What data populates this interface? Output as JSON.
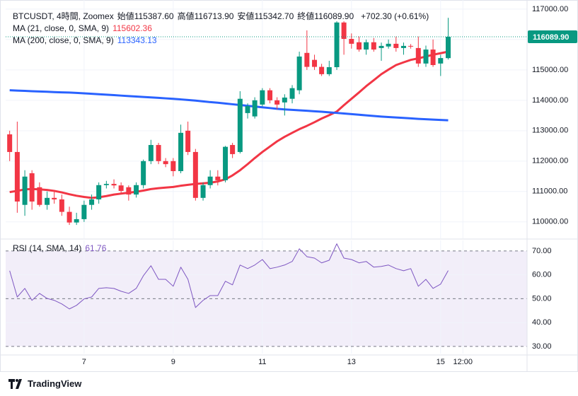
{
  "chart_data": {
    "type": "candlestick",
    "title": "BTCUSDT, 4時間, Zoomex",
    "ohlc_legend": [
      {
        "label": "始値",
        "value": "115387.60"
      },
      {
        "label": "高値",
        "value": "116713.90"
      },
      {
        "label": "安値",
        "value": "115342.70"
      },
      {
        "label": "終値",
        "value": "116089.90"
      }
    ],
    "change_label": "+702.30 (+0.61%)",
    "up_color": "#089981",
    "down_color": "#f23645",
    "x": [
      5.33,
      5.5,
      5.67,
      5.83,
      6,
      6.17,
      6.33,
      6.5,
      6.67,
      6.83,
      7,
      7.17,
      7.33,
      7.5,
      7.67,
      7.83,
      8,
      8.17,
      8.33,
      8.5,
      8.67,
      8.83,
      9,
      9.17,
      9.33,
      9.5,
      9.67,
      9.83,
      10,
      10.17,
      10.33,
      10.5,
      10.67,
      10.83,
      11,
      11.17,
      11.33,
      11.5,
      11.67,
      11.83,
      12,
      12.17,
      12.33,
      12.5,
      12.67,
      12.83,
      13,
      13.17,
      13.33,
      13.5,
      13.67,
      13.83,
      14,
      14.17,
      14.33,
      14.5,
      14.67,
      14.83,
      15,
      15.17
    ],
    "open": [
      112880,
      112300,
      110560,
      111600,
      111140,
      110560,
      110790,
      110740,
      110330,
      109980,
      110090,
      110560,
      110740,
      111210,
      111250,
      111200,
      111140,
      110900,
      111210,
      112000,
      112530,
      112000,
      112000,
      111670,
      113000,
      112300,
      110790,
      111210,
      111490,
      111370,
      112530,
      112300,
      113580,
      113470,
      113860,
      114330,
      114000,
      113930,
      114050,
      114330,
      115560,
      115330,
      115100,
      114860,
      115090,
      116560,
      116020,
      115910,
      115670,
      115910,
      115720,
      115770,
      115860,
      115720,
      115790,
      115720,
      115210,
      115670,
      115210,
      115387.6
    ],
    "high": [
      113000,
      113300,
      111700,
      111700,
      111300,
      111000,
      111000,
      110900,
      110500,
      110300,
      110700,
      110900,
      111300,
      111350,
      111400,
      111300,
      111200,
      111300,
      112050,
      112700,
      112600,
      112100,
      112100,
      113200,
      113300,
      112400,
      111300,
      111700,
      111700,
      112500,
      112600,
      114300,
      113900,
      114100,
      114400,
      114400,
      114100,
      114200,
      114500,
      115600,
      116300,
      115500,
      115200,
      115300,
      116600,
      116600,
      116200,
      116100,
      116000,
      116050,
      115900,
      116000,
      116100,
      115900,
      115850,
      116100,
      115800,
      116000,
      115500,
      116713.9
    ],
    "low": [
      112000,
      110300,
      110200,
      110400,
      110500,
      110400,
      110600,
      110200,
      109900,
      109900,
      110000,
      110400,
      110600,
      111100,
      111100,
      110900,
      110700,
      110800,
      111100,
      111900,
      111900,
      111800,
      111500,
      111600,
      112200,
      110700,
      110700,
      111100,
      111200,
      111300,
      112100,
      112250,
      113400,
      113400,
      113800,
      113900,
      113700,
      113500,
      113900,
      114200,
      115000,
      115000,
      114800,
      114800,
      115000,
      115500,
      115700,
      115600,
      115500,
      115600,
      115300,
      115700,
      115600,
      115500,
      115700,
      115100,
      115100,
      115100,
      114800,
      115342.7
    ],
    "close": [
      112300,
      110670,
      111490,
      110670,
      110560,
      110790,
      110740,
      110330,
      109980,
      110090,
      110560,
      110740,
      111210,
      111250,
      111200,
      111020,
      110900,
      111210,
      112000,
      112530,
      112000,
      111900,
      111670,
      112930,
      112300,
      110790,
      111210,
      111490,
      111370,
      112470,
      112230,
      114050,
      113810,
      114000,
      114330,
      114000,
      113860,
      114090,
      114400,
      115440,
      115100,
      115100,
      114860,
      115090,
      116560,
      116020,
      115860,
      115670,
      115910,
      115670,
      115790,
      115860,
      115720,
      115790,
      115770,
      115210,
      115670,
      115160,
      115390,
      116089.9
    ],
    "last_price_label": "116089.90",
    "series": [
      {
        "name": "MA (21, close, 0, SMA, 9)",
        "color": "#f23645",
        "value_label": "115602.36",
        "values": [
          110980,
          111020,
          111070,
          111080,
          111070,
          111050,
          111020,
          110970,
          110910,
          110860,
          110820,
          110790,
          110810,
          110850,
          110900,
          110930,
          110960,
          110990,
          111030,
          111080,
          111110,
          111130,
          111150,
          111190,
          111220,
          111250,
          111270,
          111290,
          111330,
          111400,
          111530,
          111700,
          111900,
          112100,
          112300,
          112480,
          112650,
          112800,
          112930,
          113050,
          113160,
          113280,
          113400,
          113510,
          113630,
          113840,
          114050,
          114260,
          114465,
          114660,
          114860,
          115010,
          115160,
          115250,
          115330,
          115380,
          115440,
          115500,
          115550,
          115602.36
        ]
      },
      {
        "name": "MA (200, close, 0, SMA, 9)",
        "color": "#2962ff",
        "value_label": "113343.13",
        "values": [
          114330,
          114320,
          114310,
          114300,
          114290,
          114280,
          114270,
          114260,
          114255,
          114245,
          114230,
          114215,
          114200,
          114185,
          114170,
          114155,
          114140,
          114125,
          114110,
          114095,
          114080,
          114065,
          114050,
          114030,
          114010,
          113990,
          113965,
          113940,
          113920,
          113895,
          113870,
          113845,
          113820,
          113795,
          113770,
          113745,
          113720,
          113700,
          113685,
          113670,
          113655,
          113640,
          113625,
          113605,
          113585,
          113565,
          113545,
          113525,
          113505,
          113485,
          113465,
          113450,
          113435,
          113420,
          113405,
          113390,
          113378,
          113366,
          113355,
          113343.13
        ]
      }
    ],
    "xlim": [
      5.24,
      16.94
    ],
    "xticks": [
      7,
      9,
      11,
      13,
      15,
      {
        "value": 15.5,
        "label": "12:00"
      }
    ],
    "ylim": [
      109460,
      117300
    ],
    "yticks": [
      {
        "value": 110000,
        "label": "110000.00"
      },
      {
        "value": 111000,
        "label": "111000.00"
      },
      {
        "value": 112000,
        "label": "112000.00"
      },
      {
        "value": 113000,
        "label": "113000.00"
      },
      {
        "value": 114000,
        "label": "114000.00"
      },
      {
        "value": 115000,
        "label": "115000.00"
      },
      {
        "value": 116000,
        "label": "116000.00"
      },
      {
        "value": 117000,
        "label": "117000.00"
      }
    ],
    "grid": true,
    "rsi": {
      "name": "RSI (14, SMA, 14)",
      "color": "#7e57c2",
      "value_label": "61.76",
      "values": [
        61.7,
        50.7,
        54.3,
        49.3,
        52.2,
        50.1,
        49.3,
        47.8,
        45.7,
        47.2,
        49.9,
        50.7,
        54.3,
        54.6,
        54.3,
        53.1,
        52.2,
        54.3,
        59.6,
        63.8,
        58.1,
        58.1,
        55.2,
        63.2,
        58.1,
        46.3,
        49.3,
        51.3,
        51.3,
        57.3,
        55.8,
        64.1,
        62.6,
        64.1,
        66.4,
        62.6,
        63.2,
        64.1,
        65.6,
        70.9,
        67.6,
        67.0,
        65.0,
        66.1,
        73.0,
        67.0,
        66.4,
        65.0,
        65.6,
        63.2,
        63.5,
        64.1,
        62.6,
        61.7,
        62.6,
        55.2,
        58.1,
        54.3,
        56.1,
        61.76
      ],
      "ylim": [
        27,
        74.4
      ],
      "yticks": [
        {
          "value": 30,
          "label": "30.00"
        },
        {
          "value": 40,
          "label": "40.00"
        },
        {
          "value": 50,
          "label": "50.00"
        },
        {
          "value": 60,
          "label": "60.00"
        },
        {
          "value": 70,
          "label": "70.00"
        }
      ]
    }
  },
  "branding": "TradingView"
}
